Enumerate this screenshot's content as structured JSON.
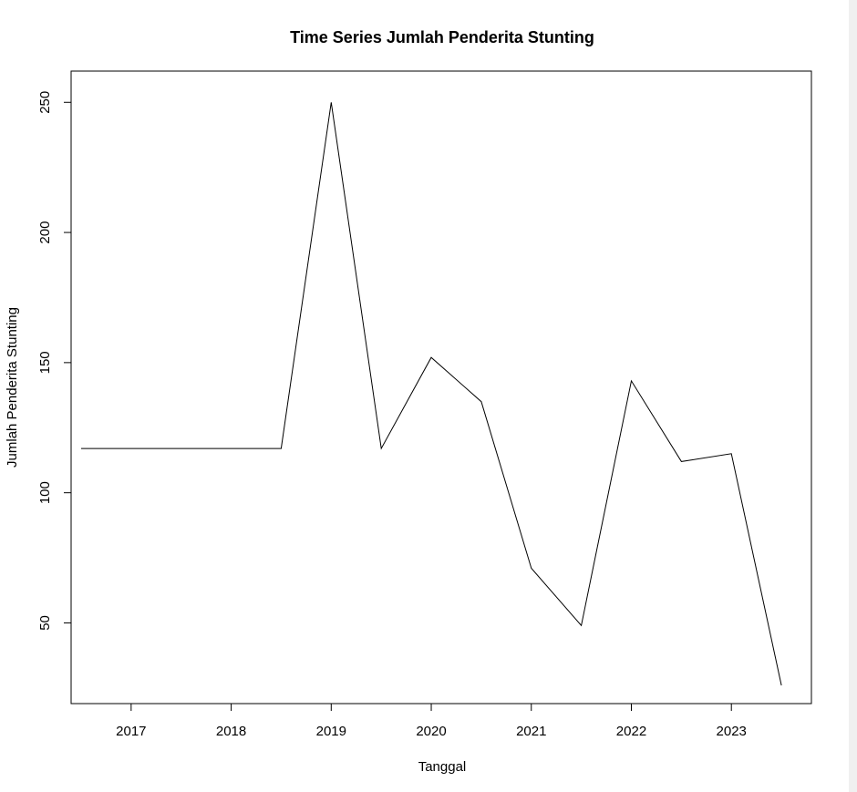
{
  "chart_data": {
    "type": "line",
    "title": "Time Series Jumlah Penderita Stunting",
    "xlabel": "Tanggal",
    "ylabel": "Jumlah Penderita Stunting",
    "x_ticks": [
      "2017",
      "2018",
      "2019",
      "2020",
      "2021",
      "2022",
      "2023"
    ],
    "y_ticks": [
      50,
      100,
      150,
      200,
      250
    ],
    "xlim": [
      2016.4,
      2023.8
    ],
    "ylim": [
      19,
      262
    ],
    "grid": false,
    "legend": "none",
    "line_color": "#000000",
    "series": [
      {
        "x": [
          2016.5,
          2017.0,
          2017.5,
          2018.0,
          2018.5,
          2019.0,
          2019.5,
          2020.0,
          2020.5,
          2021.0,
          2021.5,
          2022.0,
          2022.5,
          2023.0,
          2023.5
        ],
        "values": [
          117,
          117,
          117,
          117,
          117,
          250,
          117,
          152,
          135,
          71,
          49,
          143,
          112,
          115,
          26
        ]
      }
    ]
  }
}
